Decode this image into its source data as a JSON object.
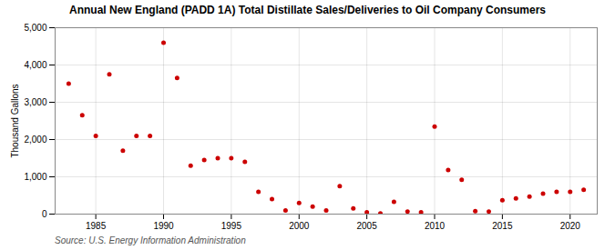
{
  "chart_data": {
    "type": "scatter",
    "title": "Annual New England (PADD 1A) Total Distillate Sales/Deliveries to Oil Company Consumers",
    "ylabel": "Thousand Gallons",
    "source": "Source: U.S. Energy Information Administration",
    "x": [
      1983,
      1984,
      1985,
      1986,
      1987,
      1988,
      1989,
      1990,
      1991,
      1992,
      1993,
      1994,
      1995,
      1996,
      1997,
      1998,
      1999,
      2000,
      2001,
      2002,
      2003,
      2004,
      2005,
      2006,
      2007,
      2008,
      2009,
      2010,
      2011,
      2012,
      2013,
      2014,
      2015,
      2016,
      2017,
      2018,
      2019,
      2020,
      2021
    ],
    "values": [
      3500,
      2650,
      2100,
      3750,
      1700,
      2100,
      2100,
      4600,
      3650,
      1300,
      1450,
      1500,
      1500,
      1400,
      600,
      400,
      100,
      300,
      200,
      100,
      750,
      150,
      50,
      20,
      330,
      70,
      50,
      2350,
      1180,
      920,
      80,
      70,
      370,
      420,
      470,
      550,
      600,
      600,
      650
    ],
    "color": "#cc0000",
    "xlim": [
      1982,
      2022
    ],
    "xticks": [
      1985,
      1990,
      1995,
      2000,
      2005,
      2010,
      2015,
      2020
    ],
    "ylim": [
      0,
      5000
    ],
    "yticks": [
      0,
      {
        "value": 1000,
        "label": "1,000"
      },
      {
        "value": 2000,
        "label": "2,000"
      },
      {
        "value": 3000,
        "label": "3,000"
      },
      {
        "value": 4000,
        "label": "4,000"
      },
      {
        "value": 5000,
        "label": "5,000"
      }
    ],
    "grid": true
  }
}
